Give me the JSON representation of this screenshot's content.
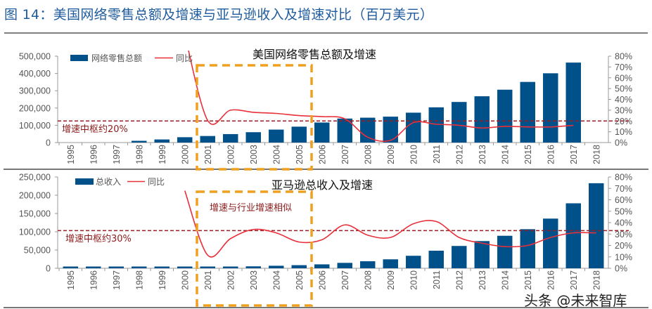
{
  "figure_title": "图 14：美国网络零售总额及增速与亚马逊收入及增速对比（百万美元）",
  "watermark": "头条 @未来智库",
  "colors": {
    "bar": "#00508a",
    "line": "#e8303a",
    "reference": "#9b1c24",
    "highlight_box": "#f0a020",
    "title": "#1f5c9e"
  },
  "chart_data": [
    {
      "type": "bar",
      "title": "美国网络零售总额及增速",
      "categories": [
        "1995",
        "1996",
        "1997",
        "1998",
        "1999",
        "2000",
        "2001",
        "2002",
        "2003",
        "2004",
        "2005",
        "2006",
        "2007",
        "2008",
        "2009",
        "2010",
        "2011",
        "2012",
        "2013",
        "2014",
        "2015",
        "2016",
        "2017",
        "2018"
      ],
      "series": [
        {
          "name": "网络零售总额",
          "type": "bar",
          "axis": "left",
          "values": [
            null,
            null,
            null,
            7000,
            18000,
            31000,
            38000,
            49000,
            60000,
            75000,
            92000,
            116000,
            139000,
            144000,
            150000,
            173000,
            204000,
            235000,
            268000,
            306000,
            351000,
            401000,
            463000,
            null
          ]
        },
        {
          "name": "同比",
          "type": "line",
          "axis": "right",
          "values": [
            null,
            null,
            null,
            null,
            null,
            100,
            20.5,
            30,
            28,
            27,
            25,
            24,
            22,
            5,
            2,
            18.5,
            17,
            16,
            13.5,
            15,
            14.5,
            14.5,
            16,
            null
          ]
        }
      ],
      "left_axis": {
        "ylim": [
          0,
          500000
        ],
        "ticks": [
          "0",
          "100,000",
          "200,000",
          "300,000",
          "400,000",
          "500,000"
        ]
      },
      "right_axis": {
        "ylim": [
          0,
          80
        ],
        "ticks": [
          "0%",
          "10%",
          "20%",
          "30%",
          "40%",
          "50%",
          "60%",
          "70%",
          "80%"
        ]
      },
      "reference_line": {
        "value_pct": 20,
        "label": "增速中枢约20%"
      },
      "highlight_range": [
        "2001",
        "2005"
      ],
      "highlight_label": "",
      "legend": "top-left"
    },
    {
      "type": "bar",
      "title": "亚马逊总收入及增速",
      "categories": [
        "1995",
        "1996",
        "1997",
        "1998",
        "1999",
        "2000",
        "2001",
        "2002",
        "2003",
        "2004",
        "2005",
        "2006",
        "2007",
        "2008",
        "2009",
        "2010",
        "2011",
        "2012",
        "2013",
        "2014",
        "2015",
        "2016",
        "2017",
        "2018"
      ],
      "series": [
        {
          "name": "总收入",
          "type": "bar",
          "axis": "left",
          "values": [
            1500,
            1500,
            1500,
            1500,
            1600,
            2800,
            3100,
            3900,
            5300,
            6900,
            8500,
            10700,
            14800,
            19200,
            24500,
            34200,
            48100,
            61100,
            74500,
            89000,
            107000,
            136000,
            177900,
            232900
          ]
        },
        {
          "name": "同比",
          "type": "line",
          "axis": "right",
          "values": [
            null,
            null,
            null,
            null,
            null,
            68,
            11.5,
            26,
            34,
            31,
            23,
            25,
            38,
            29,
            27,
            39,
            41,
            27,
            22,
            19,
            20,
            27,
            31,
            31
          ]
        }
      ],
      "left_axis": {
        "ylim": [
          0,
          250000
        ],
        "ticks": [
          "0",
          "50,000",
          "100,000",
          "150,000",
          "200,000",
          "250,000"
        ]
      },
      "right_axis": {
        "ylim": [
          0,
          80
        ],
        "ticks": [
          "0%",
          "10%",
          "20%",
          "30%",
          "40%",
          "50%",
          "60%",
          "70%",
          "80%"
        ]
      },
      "reference_line": {
        "value_pct": 33,
        "label": "增速中枢约30%"
      },
      "highlight_range": [
        "2001",
        "2005"
      ],
      "highlight_label": "增速与行业增速相似",
      "legend": "top-left"
    }
  ]
}
